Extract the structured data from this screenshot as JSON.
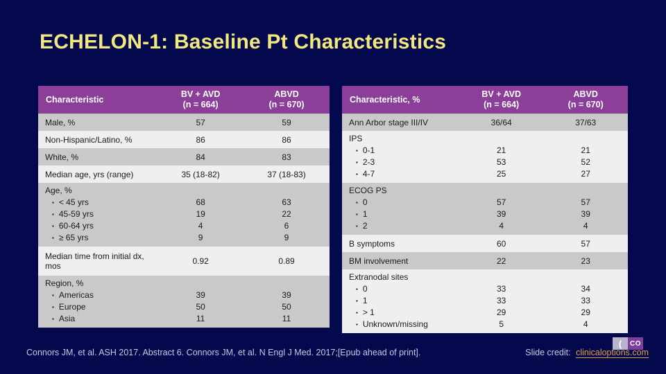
{
  "slide": {
    "title": "ECHELON-1: Baseline Pt Characteristics"
  },
  "colors": {
    "background": "#04084d",
    "title": "#f1e97f",
    "header_bg": "#8b3f98",
    "header_text": "#ffffff",
    "row_gray": "#c9c9c9",
    "row_light": "#efefef",
    "body_text": "#1a1a1a",
    "footer_text": "#c9c9df",
    "link": "#e2a33e"
  },
  "bullet_icon": "▪",
  "tables": [
    {
      "name": "baseline-demographics-table",
      "header": {
        "label": "Characteristic",
        "col1_line1": "BV + AVD",
        "col1_line2": "(n = 664)",
        "col2_line1": "ABVD",
        "col2_line2": "(n = 670)"
      },
      "rows": [
        {
          "label": "Male, %",
          "v1": "57",
          "v2": "59"
        },
        {
          "label": "Non-Hispanic/Latino, %",
          "v1": "86",
          "v2": "86"
        },
        {
          "label": "White, %",
          "v1": "84",
          "v2": "83"
        },
        {
          "label": "Median age, yrs (range)",
          "v1": "35 (18-82)",
          "v2": "37 (18-83)"
        },
        {
          "label": "Age, %",
          "items": [
            {
              "label": "< 45 yrs",
              "v1": "68",
              "v2": "63"
            },
            {
              "label": "45-59 yrs",
              "v1": "19",
              "v2": "22"
            },
            {
              "label": "60-64 yrs",
              "v1": "4",
              "v2": "6"
            },
            {
              "label": "≥ 65 yrs",
              "v1": "9",
              "v2": "9"
            }
          ]
        },
        {
          "label": "Median time from initial dx, mos",
          "tall": true,
          "v1": "0.92",
          "v2": "0.89"
        },
        {
          "label": "Region, %",
          "items": [
            {
              "label": "Americas",
              "v1": "39",
              "v2": "39"
            },
            {
              "label": "Europe",
              "v1": "50",
              "v2": "50"
            },
            {
              "label": "Asia",
              "v1": "11",
              "v2": "11"
            }
          ]
        }
      ]
    },
    {
      "name": "disease-characteristics-table",
      "header": {
        "label": "Characteristic, %",
        "col1_line1": "BV + AVD",
        "col1_line2": "(n = 664)",
        "col2_line1": "ABVD",
        "col2_line2": "(n = 670)"
      },
      "rows": [
        {
          "label": "Ann Arbor stage III/IV",
          "v1": "36/64",
          "v2": "37/63"
        },
        {
          "label": "IPS",
          "items": [
            {
              "label": "0-1",
              "v1": "21",
              "v2": "21"
            },
            {
              "label": "2-3",
              "v1": "53",
              "v2": "52"
            },
            {
              "label": "4-7",
              "v1": "25",
              "v2": "27"
            }
          ]
        },
        {
          "label": "ECOG PS",
          "items": [
            {
              "label": "0",
              "v1": "57",
              "v2": "57"
            },
            {
              "label": "1",
              "v1": "39",
              "v2": "39"
            },
            {
              "label": "2",
              "v1": "4",
              "v2": "4"
            }
          ]
        },
        {
          "label": "B symptoms",
          "v1": "60",
          "v2": "57"
        },
        {
          "label": "BM involvement",
          "v1": "22",
          "v2": "23"
        },
        {
          "label": "Extranodal sites",
          "items": [
            {
              "label": "0",
              "v1": "33",
              "v2": "34"
            },
            {
              "label": "1",
              "v1": "33",
              "v2": "33"
            },
            {
              "label": "> 1",
              "v1": "29",
              "v2": "29"
            },
            {
              "label": "Unknown/missing",
              "v1": "5",
              "v2": "4"
            }
          ]
        }
      ]
    }
  ],
  "footer": {
    "citation": "Connors JM, et al. ASH 2017. Abstract 6. Connors JM, et al. N Engl J Med. 2017;[Epub ahead of print].",
    "credit_label": "Slide credit:",
    "credit_link": "clinicaloptions.com",
    "logo_left": "(",
    "logo_right": "CO"
  }
}
